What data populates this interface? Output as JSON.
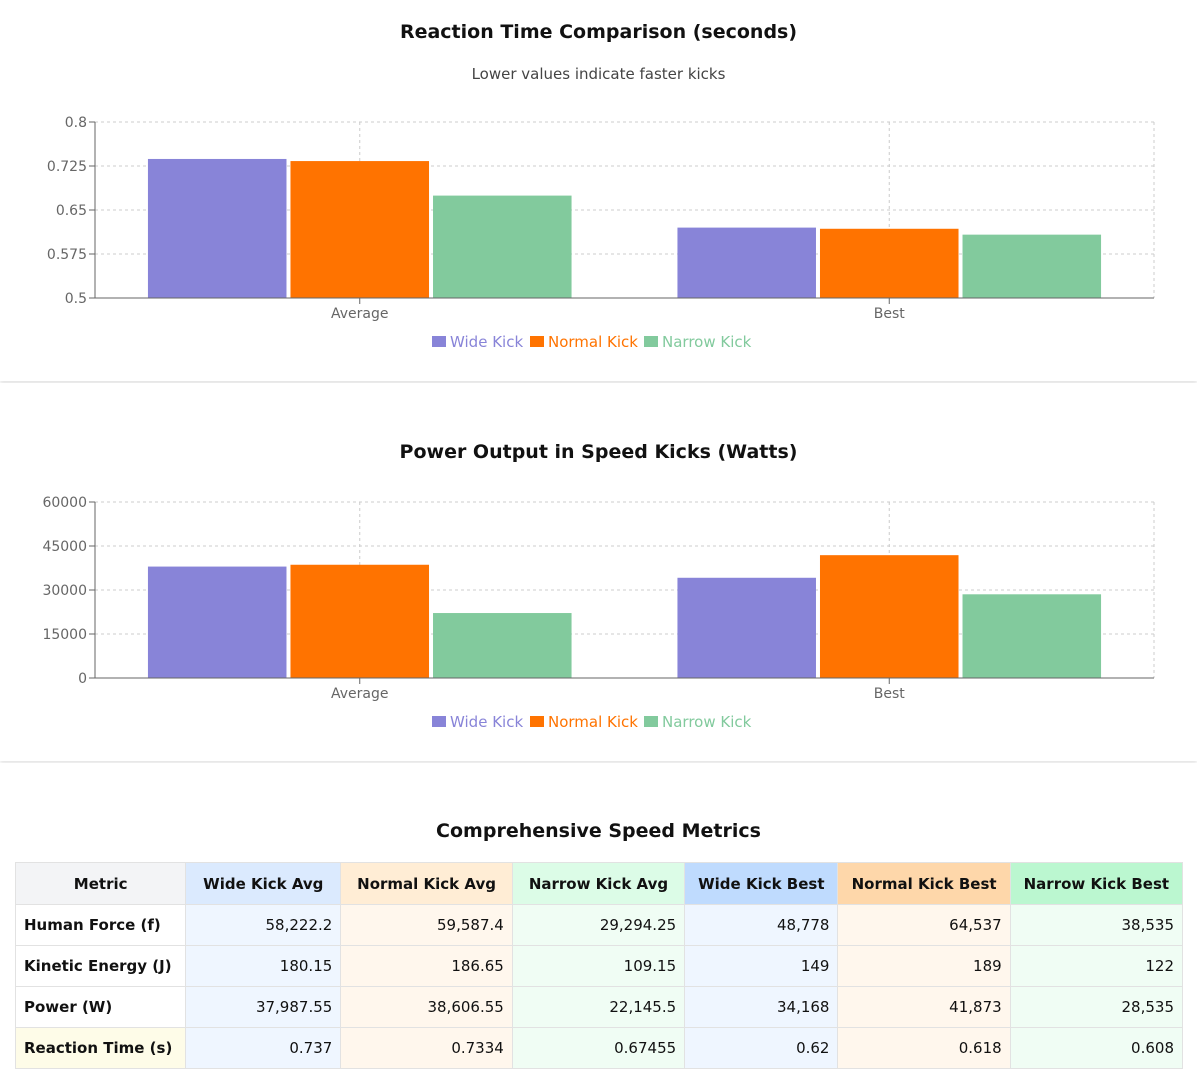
{
  "colors": {
    "wide": "#8884d8",
    "normal": "#ff7300",
    "narrow": "#82ca9d"
  },
  "charts": [
    {
      "title": "Reaction Time Comparison (seconds)",
      "subtitle": "Lower values indicate faster kicks"
    },
    {
      "title": "Power Output in Speed Kicks (Watts)",
      "subtitle": ""
    }
  ],
  "chart_data": [
    {
      "type": "bar",
      "title": "Reaction Time Comparison (seconds)",
      "subtitle": "Lower values indicate faster kicks",
      "categories": [
        "Average",
        "Best"
      ],
      "series": [
        {
          "name": "Wide Kick",
          "values": [
            0.737,
            0.62
          ]
        },
        {
          "name": "Normal Kick",
          "values": [
            0.7334,
            0.618
          ]
        },
        {
          "name": "Narrow Kick",
          "values": [
            0.67455,
            0.608
          ]
        }
      ],
      "ylim": [
        0.5,
        0.8
      ],
      "yticks": [
        "0.5",
        "0.575",
        "0.65",
        "0.725",
        "0.8"
      ],
      "grid": true,
      "legend": "bottom-center"
    },
    {
      "type": "bar",
      "title": "Power Output in Speed Kicks (Watts)",
      "categories": [
        "Average",
        "Best"
      ],
      "series": [
        {
          "name": "Wide Kick",
          "values": [
            37987.55,
            34168
          ]
        },
        {
          "name": "Normal Kick",
          "values": [
            38606.55,
            41873
          ]
        },
        {
          "name": "Narrow Kick",
          "values": [
            22145.5,
            28535
          ]
        }
      ],
      "ylim": [
        0,
        60000
      ],
      "yticks": [
        "0",
        "15000",
        "30000",
        "45000",
        "60000"
      ],
      "grid": true,
      "legend": "bottom-center"
    }
  ],
  "table": {
    "title": "Comprehensive Speed Metrics",
    "headers": [
      "Metric",
      "Wide Kick Avg",
      "Normal Kick Avg",
      "Narrow Kick Avg",
      "Wide Kick Best",
      "Normal Kick Best",
      "Narrow Kick Best"
    ],
    "header_colors": [
      "#f3f4f6",
      "#dbeafe",
      "#ffedd5",
      "#dcfce7",
      "#bfdbfe",
      "#fed7aa",
      "#bbf7d0"
    ],
    "cell_colors": [
      "#ffffff",
      "#eff6ff",
      "#fff7ed",
      "#f0fdf4",
      "#eff6ff",
      "#fff7ed",
      "#f0fdf4"
    ],
    "highlight_color": "#fefce8",
    "rows": [
      [
        "Human Force (f)",
        "58,222.2",
        "59,587.4",
        "29,294.25",
        "48,778",
        "64,537",
        "38,535"
      ],
      [
        "Kinetic Energy (J)",
        "180.15",
        "186.65",
        "109.15",
        "149",
        "189",
        "122"
      ],
      [
        "Power (W)",
        "37,987.55",
        "38,606.55",
        "22,145.5",
        "34,168",
        "41,873",
        "28,535"
      ],
      [
        "Reaction Time (s)",
        "0.737",
        "0.7334",
        "0.67455",
        "0.62",
        "0.618",
        "0.608"
      ]
    ]
  }
}
